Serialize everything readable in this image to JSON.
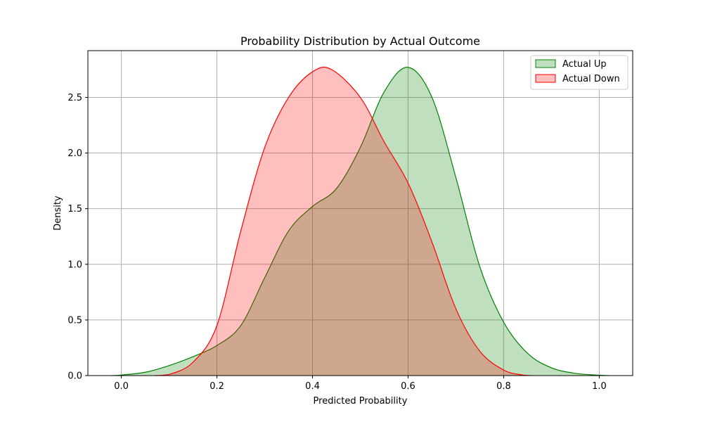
{
  "chart_data": {
    "type": "area",
    "title": "Probability Distribution by Actual Outcome",
    "xlabel": "Predicted Probability",
    "ylabel": "Density",
    "xlim": [
      -0.07,
      1.07
    ],
    "ylim": [
      0,
      2.92
    ],
    "xticks": [
      "0.0",
      "0.2",
      "0.4",
      "0.6",
      "0.8",
      "1.0"
    ],
    "xtick_values": [
      0.0,
      0.2,
      0.4,
      0.6,
      0.8,
      1.0
    ],
    "yticks": [
      "0.0",
      "0.5",
      "1.0",
      "1.5",
      "2.0",
      "2.5"
    ],
    "ytick_values": [
      0.0,
      0.5,
      1.0,
      1.5,
      2.0,
      2.5
    ],
    "grid": true,
    "legend_position": "top-right",
    "series": [
      {
        "name": "Actual Up",
        "color": "#008000",
        "fill": "#c0dfc0",
        "x": [
          -0.02,
          0.0,
          0.05,
          0.1,
          0.15,
          0.2,
          0.25,
          0.3,
          0.35,
          0.4,
          0.45,
          0.5,
          0.55,
          0.6,
          0.65,
          0.7,
          0.75,
          0.8,
          0.85,
          0.9,
          0.95,
          1.0,
          1.02
        ],
        "y": [
          0.0,
          0.005,
          0.03,
          0.09,
          0.17,
          0.27,
          0.45,
          0.88,
          1.3,
          1.52,
          1.68,
          2.05,
          2.55,
          2.77,
          2.5,
          1.78,
          0.98,
          0.48,
          0.2,
          0.07,
          0.02,
          0.003,
          0.0
        ]
      },
      {
        "name": "Actual Down",
        "color": "#ff0000",
        "fill": "#ffbfbf",
        "x": [
          0.07,
          0.1,
          0.15,
          0.2,
          0.25,
          0.3,
          0.35,
          0.4,
          0.44,
          0.5,
          0.55,
          0.6,
          0.65,
          0.7,
          0.75,
          0.8,
          0.84,
          0.86
        ],
        "y": [
          0.0,
          0.01,
          0.12,
          0.45,
          1.3,
          2.05,
          2.5,
          2.73,
          2.75,
          2.5,
          2.1,
          1.73,
          1.2,
          0.6,
          0.22,
          0.05,
          0.005,
          0.0
        ]
      }
    ]
  }
}
